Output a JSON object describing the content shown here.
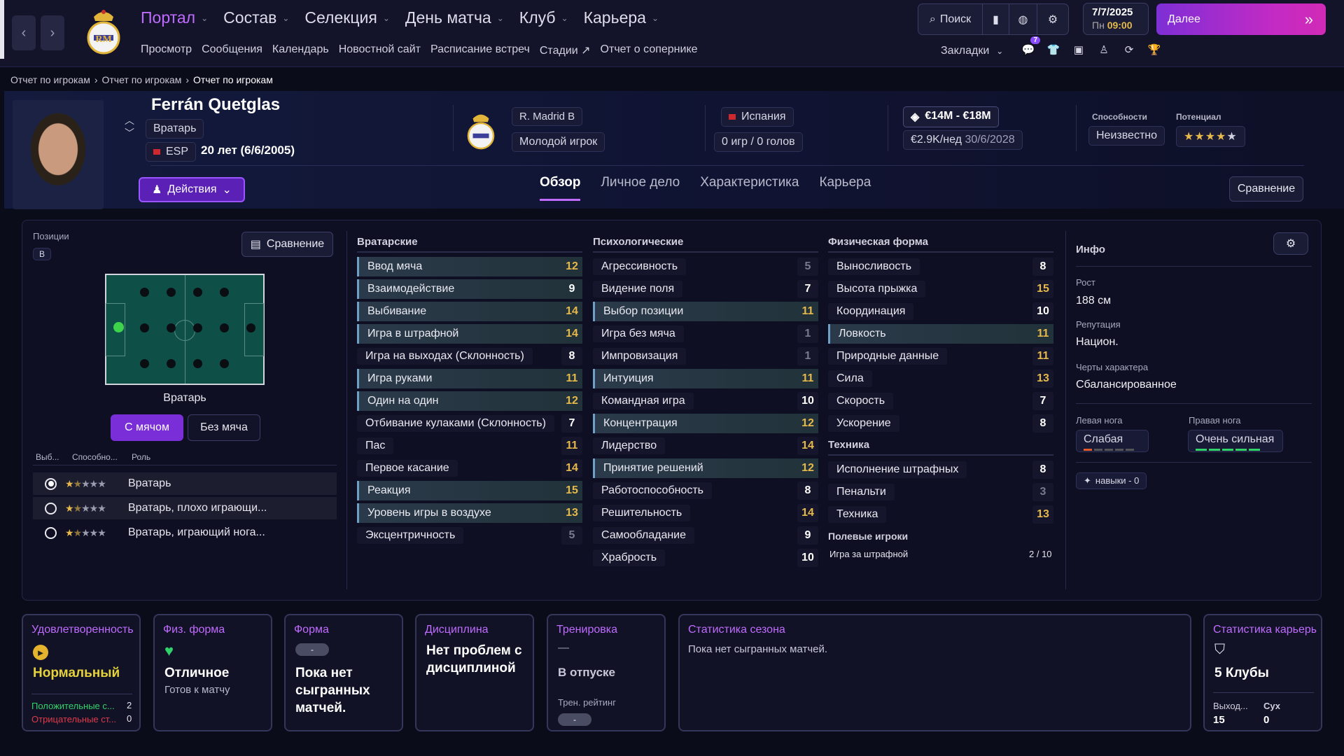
{
  "nav": {
    "main": [
      "Портал",
      "Состав",
      "Селекция",
      "День матча",
      "Клуб",
      "Карьера"
    ],
    "sub": [
      "Просмотр",
      "Сообщения",
      "Календарь",
      "Новостной сайт",
      "Расписание встреч",
      "Стадии",
      "Отчет о сопернике"
    ],
    "search": "Поиск",
    "date": "7/7/2025",
    "day": "Пн",
    "time": "09:00",
    "next": "Далее",
    "bookmarks": "Закладки",
    "badge": "7"
  },
  "breadcrumb": [
    "Отчет по игрокам",
    "Отчет по игрокам",
    "Отчет по игрокам"
  ],
  "player": {
    "name": "Ferrán Quetglas",
    "position": "Вратарь",
    "nation_code": "ESP",
    "age": "20 лет (6/6/2005)",
    "club": "R. Madrid B",
    "status": "Молодой игрок",
    "nationality": "Испания",
    "games": "0 игр / 0 голов",
    "value": "€14M - €18M",
    "wage": "€2.9K/нед",
    "contract": "30/6/2028",
    "ability_label": "Способности",
    "potential_label": "Потенциал",
    "ability": "Неизвестно",
    "potential_stars": 4.5
  },
  "actions": "Действия",
  "tabs": [
    "Обзор",
    "Личное дело",
    "Характеристика",
    "Карьера"
  ],
  "compare": "Сравнение",
  "positions": {
    "label": "Позиции",
    "code": "В",
    "compare": "Сравнение",
    "pitch_label": "Вратарь",
    "with_ball": "С мячом",
    "without_ball": "Без мяча",
    "headers": [
      "Выб...",
      "Способно...",
      "Роль"
    ],
    "roles": [
      {
        "name": "Вратарь",
        "stars": 1.5,
        "selected": true
      },
      {
        "name": "Вратарь, плохо играющи...",
        "stars": 1.5,
        "selected": false
      },
      {
        "name": "Вратарь, играющий нога...",
        "stars": 1.5,
        "selected": false
      }
    ]
  },
  "goalkeeping": {
    "title": "Вратарские",
    "attrs": [
      {
        "name": "Ввод мяча",
        "value": "12",
        "hl": true
      },
      {
        "name": "Взаимодействие",
        "value": "9",
        "hl": true
      },
      {
        "name": "Выбивание",
        "value": "14",
        "hl": true
      },
      {
        "name": "Игра в штрафной",
        "value": "14",
        "hl": true
      },
      {
        "name": "Игра на выходах (Склонность)",
        "value": "8",
        "hl": false
      },
      {
        "name": "Игра руками",
        "value": "11",
        "hl": true
      },
      {
        "name": "Один на один",
        "value": "12",
        "hl": true
      },
      {
        "name": "Отбивание кулаками (Склонность)",
        "value": "7",
        "hl": false
      },
      {
        "name": "Пас",
        "value": "11",
        "hl": false
      },
      {
        "name": "Первое касание",
        "value": "14",
        "hl": false
      },
      {
        "name": "Реакция",
        "value": "15",
        "hl": true
      },
      {
        "name": "Уровень игры в воздухе",
        "value": "13",
        "hl": true
      },
      {
        "name": "Эксцентричность",
        "value": "5",
        "hl": false
      }
    ]
  },
  "mental": {
    "title": "Психологические",
    "attrs": [
      {
        "name": "Агрессивность",
        "value": "5",
        "hl": false
      },
      {
        "name": "Видение поля",
        "value": "7",
        "hl": false
      },
      {
        "name": "Выбор позиции",
        "value": "11",
        "hl": true
      },
      {
        "name": "Игра без мяча",
        "value": "1",
        "hl": false
      },
      {
        "name": "Импровизация",
        "value": "1",
        "hl": false
      },
      {
        "name": "Интуиция",
        "value": "11",
        "hl": true
      },
      {
        "name": "Командная игра",
        "value": "10",
        "hl": false
      },
      {
        "name": "Концентрация",
        "value": "12",
        "hl": true
      },
      {
        "name": "Лидерство",
        "value": "14",
        "hl": false
      },
      {
        "name": "Принятие решений",
        "value": "12",
        "hl": true
      },
      {
        "name": "Работоспособность",
        "value": "8",
        "hl": false
      },
      {
        "name": "Решительность",
        "value": "14",
        "hl": false
      },
      {
        "name": "Самообладание",
        "value": "9",
        "hl": false
      },
      {
        "name": "Храбрость",
        "value": "10",
        "hl": false
      }
    ]
  },
  "physical": {
    "title": "Физическая форма",
    "attrs": [
      {
        "name": "Выносливость",
        "value": "8",
        "hl": false
      },
      {
        "name": "Высота прыжка",
        "value": "15",
        "hl": false
      },
      {
        "name": "Координация",
        "value": "10",
        "hl": false
      },
      {
        "name": "Ловкость",
        "value": "11",
        "hl": true
      },
      {
        "name": "Природные данные",
        "value": "11",
        "hl": false
      },
      {
        "name": "Сила",
        "value": "13",
        "hl": false
      },
      {
        "name": "Скорость",
        "value": "7",
        "hl": false
      },
      {
        "name": "Ускорение",
        "value": "8",
        "hl": false
      }
    ]
  },
  "technique": {
    "title": "Техника",
    "attrs": [
      {
        "name": "Исполнение штрафных",
        "value": "8",
        "hl": false
      },
      {
        "name": "Пенальти",
        "value": "3",
        "hl": false
      },
      {
        "name": "Техника",
        "value": "13",
        "hl": false
      }
    ]
  },
  "outfield": {
    "title": "Полевые игроки",
    "label": "Игра за штрафной",
    "value": "2 / 10"
  },
  "info": {
    "title": "Инфо",
    "height_label": "Рост",
    "height": "188 см",
    "rep_label": "Репутация",
    "rep": "Национ.",
    "char_label": "Черты характера",
    "char": "Сбалансированное",
    "left_label": "Левая нога",
    "left": "Слабая",
    "left_level": 0.2,
    "right_label": "Правая нога",
    "right": "Очень сильная",
    "right_level": 1.0,
    "skills": "навыки - 0"
  },
  "cards": {
    "morale": {
      "title": "Удовлетворенность",
      "value": "Нормальный",
      "pos_label": "Положительные с...",
      "pos": "2",
      "neg_label": "Отрицательные ст...",
      "neg": "0"
    },
    "fitness": {
      "title": "Физ. форма",
      "value": "Отличное",
      "sub": "Готов к матчу"
    },
    "form": {
      "title": "Форма",
      "badge": "-",
      "value": "Пока нет сыгранных матчей."
    },
    "discipline": {
      "title": "Дисциплина",
      "value": "Нет проблем с дисциплиной"
    },
    "training": {
      "title": "Тренировка",
      "dash": "—",
      "value": "В отпуске",
      "rating_label": "Трен. рейтинг",
      "badge": "-"
    },
    "season": {
      "title": "Статистика сезона",
      "value": "Пока нет сыгранных матчей."
    },
    "career": {
      "title": "Статистика карьеры",
      "clubs": "5 Клубы",
      "apps_label": "Выход...",
      "apps": "15",
      "clean_label": "Сух",
      "clean": "0"
    }
  },
  "colors": {
    "accent": "#c06bff",
    "value_gold": "#e6b94a"
  }
}
